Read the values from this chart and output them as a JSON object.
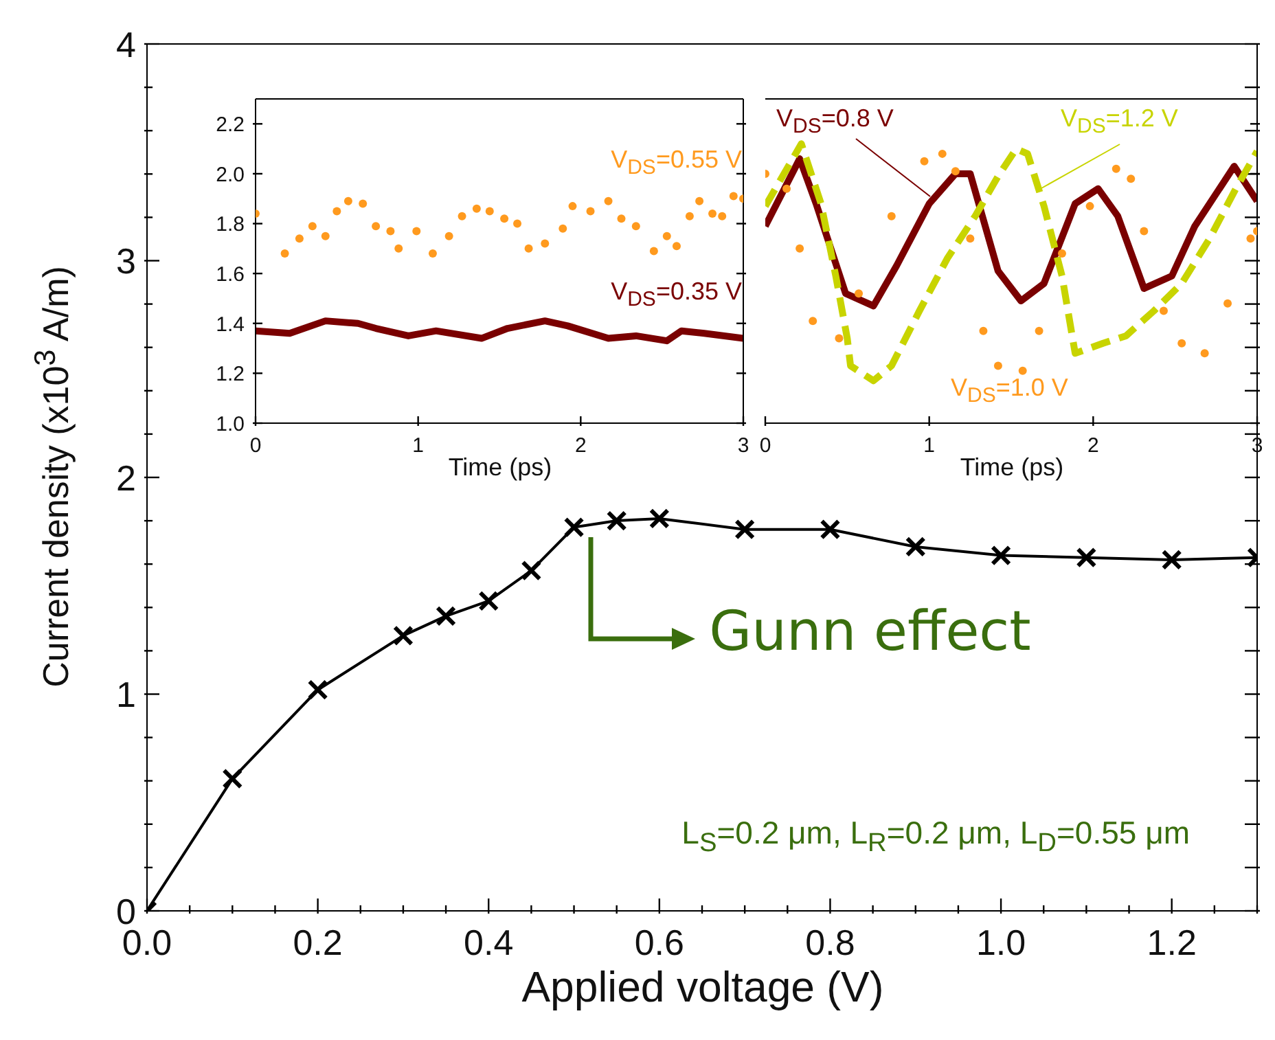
{
  "chart_data": [
    {
      "type": "line",
      "xlabel": "Applied voltage (V)",
      "ylabel": "Current density (x10$^{3}$ A/m)",
      "marker": "cross",
      "x": [
        0,
        0.1,
        0.2,
        0.3,
        0.35,
        0.4,
        0.45,
        0.5,
        0.55,
        0.6,
        0.7,
        0.8,
        0.9,
        1.0,
        1.1,
        1.2,
        1.3
      ],
      "series": [
        {
          "color": "#000000",
          "values": [
            0,
            0.61,
            1.02,
            1.27,
            1.36,
            1.43,
            1.57,
            1.77,
            1.8,
            1.81,
            1.76,
            1.76,
            1.68,
            1.64,
            1.63,
            1.62,
            1.63
          ]
        }
      ],
      "xlim": [
        0,
        1.3
      ],
      "xticks": [
        {
          "value": 0,
          "label": "0.0"
        },
        {
          "value": 0.05,
          "label": null
        },
        {
          "value": 0.1,
          "label": null
        },
        {
          "value": 0.15,
          "label": null
        },
        {
          "value": 0.2,
          "label": "0.2"
        },
        {
          "value": 0.25,
          "label": null
        },
        {
          "value": 0.3,
          "label": null
        },
        {
          "value": 0.35,
          "label": null
        },
        {
          "value": 0.4,
          "label": "0.4"
        },
        {
          "value": 0.45,
          "label": null
        },
        {
          "value": 0.5,
          "label": null
        },
        {
          "value": 0.55,
          "label": null
        },
        {
          "value": 0.6,
          "label": "0.6"
        },
        {
          "value": 0.65,
          "label": null
        },
        {
          "value": 0.7,
          "label": null
        },
        {
          "value": 0.75,
          "label": null
        },
        {
          "value": 0.8,
          "label": "0.8"
        },
        {
          "value": 0.85,
          "label": null
        },
        {
          "value": 0.9,
          "label": null
        },
        {
          "value": 0.95,
          "label": null
        },
        {
          "value": 1.0,
          "label": "1.0"
        },
        {
          "value": 1.05,
          "label": null
        },
        {
          "value": 1.1,
          "label": null
        },
        {
          "value": 1.15,
          "label": null
        },
        {
          "value": 1.2,
          "label": "1.2"
        },
        {
          "value": 1.25,
          "label": null
        },
        {
          "value": 1.3,
          "label": null
        }
      ],
      "ylim": [
        0,
        4
      ],
      "yticks": [
        0,
        {
          "value": 0.2,
          "label": null
        },
        {
          "value": 0.4,
          "label": null
        },
        {
          "value": 0.6,
          "label": null
        },
        {
          "value": 0.8,
          "label": null
        },
        1,
        {
          "value": 1.2,
          "label": null
        },
        {
          "value": 1.4,
          "label": null
        },
        {
          "value": 1.6,
          "label": null
        },
        {
          "value": 1.8,
          "label": null
        },
        2,
        {
          "value": 2.2,
          "label": null
        },
        {
          "value": 2.4,
          "label": null
        },
        {
          "value": 2.6,
          "label": null
        },
        {
          "value": 2.8,
          "label": null
        },
        3,
        {
          "value": 3.2,
          "label": null
        },
        {
          "value": 3.4,
          "label": null
        },
        {
          "value": 3.6,
          "label": null
        },
        {
          "value": 3.8,
          "label": null
        },
        4
      ],
      "annotations": [
        {
          "text": "Gunn effect",
          "x": 0.5,
          "y": 1.77
        },
        "L$_{S}$=0.2 μm, L$_{R}$=0.2 μm, L$_{D}$=0.55 μm"
      ]
    },
    {
      "type": "line",
      "xlabel": "Time (ps)",
      "xlim": [
        0,
        3
      ],
      "xticks": [
        0,
        1,
        2,
        3
      ],
      "ylim": [
        1.0,
        2.3
      ],
      "yticks": [
        {
          "value": 1.0,
          "label": "1.0"
        },
        {
          "value": 1.2,
          "label": "1.2"
        },
        {
          "value": 1.4,
          "label": "1.4"
        },
        {
          "value": 1.6,
          "label": "1.6"
        },
        {
          "value": 1.8,
          "label": "1.8"
        },
        {
          "value": 2.0,
          "label": "2.0"
        },
        {
          "value": 2.2,
          "label": "2.2"
        }
      ],
      "series": [
        {
          "name": "V$_{DS}$=0.55 V",
          "type": "scatter",
          "marker": "circle",
          "color": "#ff9a1e",
          "x": [
            0,
            0.18,
            0.27,
            0.35,
            0.43,
            0.5,
            0.57,
            0.66,
            0.74,
            0.83,
            0.88,
            0.99,
            1.09,
            1.19,
            1.27,
            1.36,
            1.44,
            1.53,
            1.61,
            1.68,
            1.78,
            1.89,
            1.95,
            2.06,
            2.17,
            2.25,
            2.34,
            2.45,
            2.53,
            2.59,
            2.67,
            2.73,
            2.81,
            2.87,
            2.94,
            3.0
          ],
          "values": [
            1.84,
            1.68,
            1.74,
            1.79,
            1.75,
            1.85,
            1.89,
            1.88,
            1.79,
            1.77,
            1.7,
            1.77,
            1.68,
            1.75,
            1.83,
            1.86,
            1.85,
            1.82,
            1.8,
            1.7,
            1.72,
            1.78,
            1.87,
            1.85,
            1.89,
            1.82,
            1.79,
            1.69,
            1.75,
            1.71,
            1.83,
            1.89,
            1.84,
            1.83,
            1.91,
            1.9
          ]
        },
        {
          "name": "V$_{DS}$=0.35 V",
          "type": "line",
          "color": "#7a0000",
          "x": [
            0,
            0.21,
            0.43,
            0.63,
            0.74,
            0.94,
            1.11,
            1.39,
            1.55,
            1.78,
            1.92,
            2.17,
            2.34,
            2.53,
            2.62,
            2.76,
            3.0
          ],
          "values": [
            1.37,
            1.36,
            1.41,
            1.4,
            1.38,
            1.35,
            1.37,
            1.34,
            1.38,
            1.41,
            1.39,
            1.34,
            1.35,
            1.33,
            1.37,
            1.36,
            1.34
          ]
        }
      ]
    },
    {
      "type": "line",
      "xlabel": "Time (ps)",
      "xlim": [
        0,
        3
      ],
      "xticks": [
        0,
        1,
        2,
        3
      ],
      "ylim": [
        1.0,
        2.3
      ],
      "tick_labels": "x",
      "yticks": [
        {
          "value": 1.0,
          "label": null
        },
        {
          "value": 1.2,
          "label": null
        },
        {
          "value": 1.4,
          "label": null
        },
        {
          "value": 1.6,
          "label": null
        },
        {
          "value": 1.8,
          "label": null
        },
        {
          "value": 2.0,
          "label": null
        },
        {
          "value": 2.2,
          "label": null
        }
      ],
      "series": [
        {
          "name": "V$_{DS}$=0.8 V",
          "type": "line",
          "color": "#7a0000",
          "x": [
            0,
            0.21,
            0.31,
            0.49,
            0.66,
            0.8,
            1.0,
            1.16,
            1.25,
            1.42,
            1.56,
            1.7,
            1.89,
            2.03,
            2.15,
            2.31,
            2.48,
            2.62,
            2.86,
            3.0
          ],
          "values": [
            1.79,
            2.06,
            1.88,
            1.52,
            1.47,
            1.63,
            1.88,
            2.0,
            2.0,
            1.61,
            1.49,
            1.56,
            1.88,
            1.94,
            1.83,
            1.54,
            1.59,
            1.79,
            2.03,
            1.89
          ]
        },
        {
          "name": "V$_{DS}$=1.0 V",
          "type": "scatter",
          "marker": "circle",
          "color": "#ff9a1e",
          "x": [
            0,
            0.13,
            0.21,
            0.29,
            0.45,
            0.57,
            0.77,
            0.97,
            1.08,
            1.16,
            1.25,
            1.33,
            1.42,
            1.57,
            1.67,
            1.81,
            1.98,
            2.14,
            2.23,
            2.31,
            2.43,
            2.54,
            2.68,
            2.82,
            2.96,
            3.0
          ],
          "values": [
            2.0,
            1.94,
            1.7,
            1.41,
            1.34,
            1.52,
            1.83,
            2.05,
            2.08,
            2.01,
            1.74,
            1.37,
            1.23,
            1.21,
            1.37,
            1.68,
            1.87,
            2.02,
            1.98,
            1.77,
            1.45,
            1.32,
            1.28,
            1.48,
            1.74,
            1.77
          ]
        },
        {
          "name": "V$_{DS}$=1.2 V",
          "type": "line",
          "line_style": "dashed",
          "color": "#c8d400",
          "x": [
            0,
            0.22,
            0.34,
            0.43,
            0.5,
            0.52,
            0.66,
            0.77,
            0.94,
            1.11,
            1.28,
            1.42,
            1.53,
            1.6,
            1.7,
            1.81,
            1.89,
            2.06,
            2.2,
            2.37,
            2.54,
            2.71,
            2.87,
            3.0
          ],
          "values": [
            1.87,
            2.12,
            1.88,
            1.59,
            1.34,
            1.23,
            1.17,
            1.23,
            1.45,
            1.66,
            1.83,
            1.99,
            2.1,
            2.08,
            1.87,
            1.59,
            1.28,
            1.32,
            1.35,
            1.45,
            1.56,
            1.74,
            1.94,
            2.09
          ]
        }
      ]
    }
  ]
}
